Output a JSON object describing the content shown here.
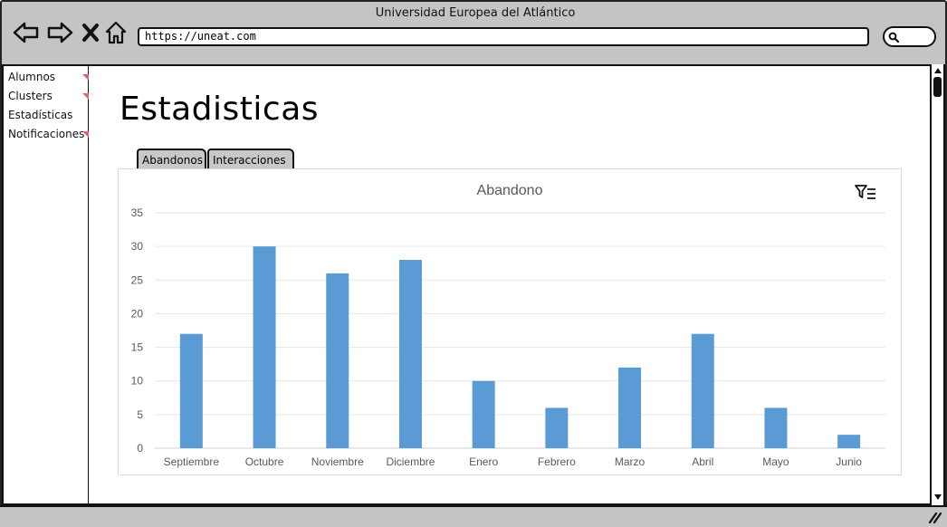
{
  "window": {
    "title": "Universidad Europea del Atlántico"
  },
  "toolbar": {
    "url": "https://uneat.com"
  },
  "sidebar": {
    "items": [
      {
        "label": "Alumnos"
      },
      {
        "label": "Clusters"
      },
      {
        "label": "Estadísticas"
      },
      {
        "label": "Notificaciones"
      }
    ]
  },
  "page": {
    "title": "Estadisticas"
  },
  "tabs": [
    {
      "label": "Abandonos",
      "selected": true
    },
    {
      "label": "Interacciones",
      "selected": false
    }
  ],
  "icons": {
    "back": "arrow-left-icon",
    "forward": "arrow-right-icon",
    "close": "close-icon",
    "home": "home-icon",
    "search": "search-icon",
    "filter": "filter-icon",
    "sidebar_marker": "flag-marker-icon"
  },
  "colors": {
    "bar": "#5b9bd5",
    "sidebar_marker": "#e06666",
    "chrome": "#c4c4c4"
  },
  "chart_data": {
    "type": "bar",
    "title": "Abandono",
    "categories": [
      "Septiembre",
      "Octubre",
      "Noviembre",
      "Diciembre",
      "Enero",
      "Febrero",
      "Marzo",
      "Abril",
      "Mayo",
      "Junio"
    ],
    "values": [
      17,
      30,
      26,
      28,
      10,
      6,
      12,
      17,
      6,
      2
    ],
    "ylim": [
      0,
      35
    ],
    "yticks": [
      "0",
      "5",
      "10",
      "15",
      "20",
      "25",
      "30",
      "35"
    ],
    "grid": true,
    "xlabel": "",
    "ylabel": ""
  }
}
